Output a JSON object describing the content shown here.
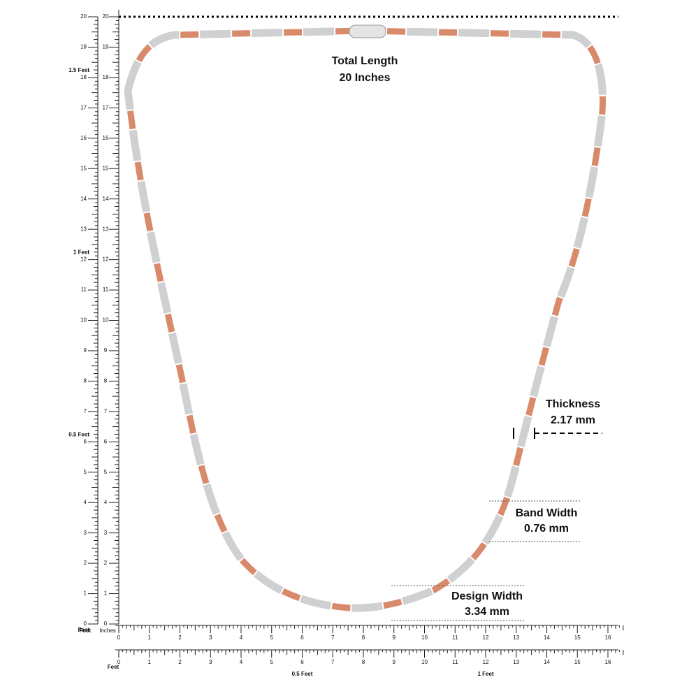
{
  "header": {
    "title": "Total Length",
    "subtitle": "20 Inches"
  },
  "left_ruler": {
    "outer_labels": [
      0,
      1,
      2,
      3,
      4,
      5,
      6,
      7,
      8,
      9,
      10,
      11,
      12,
      13,
      14,
      15,
      16,
      17,
      18,
      19,
      20
    ],
    "inner_labels": [
      0,
      1,
      2,
      3,
      4,
      5,
      6,
      7,
      8,
      9,
      10,
      11,
      12,
      13,
      14,
      15,
      16,
      17,
      18,
      19,
      20
    ],
    "feet_labels": [
      {
        "label": "Feet",
        "inches": 0
      },
      {
        "label": "0.5 Feet",
        "inches": 6
      },
      {
        "label": "1 Feet",
        "inches": 12
      },
      {
        "label": "1.5 Feet",
        "inches": 18
      }
    ]
  },
  "bottom_ruler": {
    "unit_feet": "Feet",
    "unit_inches": "Inches",
    "labels": [
      0,
      1,
      2,
      3,
      4,
      5,
      6,
      7,
      8,
      9,
      10,
      11,
      12,
      13,
      14,
      15,
      16
    ]
  },
  "feet_ruler": {
    "labels": [
      0,
      1,
      2,
      3,
      4,
      5,
      6,
      7,
      8,
      9,
      10,
      11,
      12,
      13,
      14,
      15,
      16
    ],
    "feet_labels": [
      {
        "label": "Feet",
        "inches": 0
      },
      {
        "label": "0.5 Feet",
        "inches": 6
      },
      {
        "label": "1 Feet",
        "inches": 12
      }
    ]
  },
  "annotations": {
    "thickness": {
      "title": "Thickness",
      "value": "2.17 mm"
    },
    "band_width": {
      "title": "Band Width",
      "value": "0.76 mm"
    },
    "design_width": {
      "title": "Design Width",
      "value": "3.34 mm"
    }
  }
}
